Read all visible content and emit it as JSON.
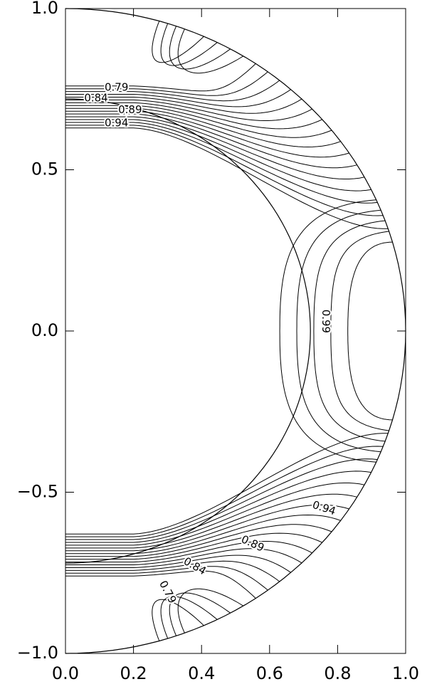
{
  "chart_data": {
    "type": "contour",
    "levels": [
      0.75,
      0.76,
      0.77,
      0.78,
      0.79,
      0.8,
      0.81,
      0.82,
      0.83,
      0.84,
      0.85,
      0.86,
      0.87,
      0.88,
      0.89,
      0.9,
      0.91,
      0.92,
      0.93,
      0.94,
      0.95,
      0.96,
      0.97,
      0.98,
      0.99
    ],
    "shells": [
      0.72,
      1.0
    ],
    "xlim": [
      0,
      1
    ],
    "ylim": [
      -1,
      1
    ],
    "xticks": [
      {
        "value": 0,
        "label": "0.0"
      },
      {
        "value": 0.2,
        "label": "0.2"
      },
      {
        "value": 0.4,
        "label": "0.4"
      },
      {
        "value": 0.6,
        "label": "0.6"
      },
      {
        "value": 0.8,
        "label": "0.8"
      },
      {
        "value": 1,
        "label": "1.0"
      }
    ],
    "yticks": [
      {
        "value": -1,
        "label": "−1.0"
      },
      {
        "value": -0.5,
        "label": "−0.5"
      },
      {
        "value": 0,
        "label": "0.0"
      },
      {
        "value": 0.5,
        "label": "0.5"
      },
      {
        "value": 1,
        "label": "1.0"
      }
    ],
    "line_color": "#000000"
  }
}
